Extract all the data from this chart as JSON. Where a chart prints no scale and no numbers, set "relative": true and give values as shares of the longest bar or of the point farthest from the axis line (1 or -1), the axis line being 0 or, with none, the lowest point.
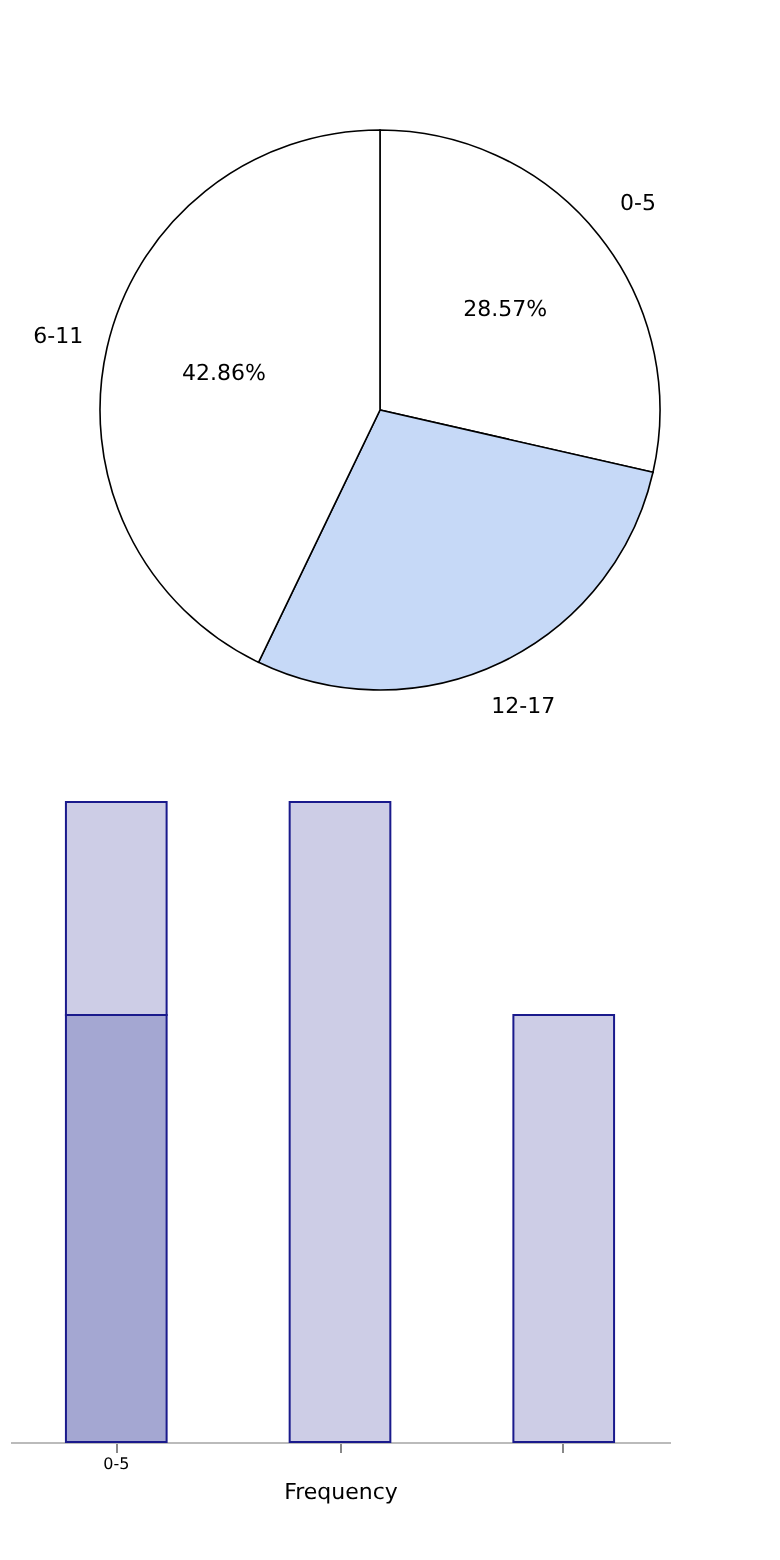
{
  "chart_data": [
    {
      "type": "pie",
      "categories": [
        "0-5",
        "12-17",
        "6-11"
      ],
      "values": [
        28.57,
        28.57,
        42.86
      ],
      "colors": [
        "#ffffff",
        "#c6d9f7",
        "#ffffff"
      ],
      "value_labels": [
        "28.57%",
        null,
        "42.86%"
      ]
    },
    {
      "type": "bar",
      "stacked": true,
      "relative": true,
      "categories": [
        "0-5",
        null,
        null
      ],
      "xlabel": "Frequency",
      "series": [
        {
          "color": "#a4a7d2",
          "values": [
            0.667,
            null,
            null
          ]
        },
        {
          "color": "#cdcde6",
          "values": [
            0.333,
            1,
            0.667
          ]
        }
      ]
    }
  ]
}
